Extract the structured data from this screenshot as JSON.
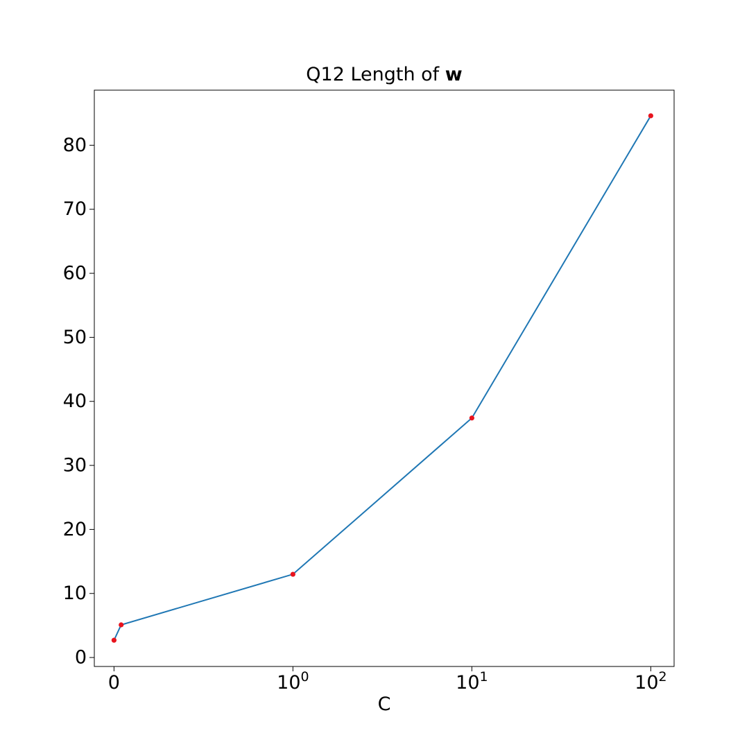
{
  "chart_data": {
    "type": "line",
    "title": "Q12 Length of w",
    "title_plain": "Q12 Length of ",
    "title_bold": "w",
    "xlabel": "C",
    "ylabel": "",
    "x_scale": "symlog",
    "x_ticks": [
      {
        "value": 0,
        "base": "0",
        "exp": ""
      },
      {
        "value": 1,
        "base": "10",
        "exp": "0"
      },
      {
        "value": 10,
        "base": "10",
        "exp": "1"
      },
      {
        "value": 100,
        "base": "10",
        "exp": "2"
      }
    ],
    "y_ticks": [
      0,
      10,
      20,
      30,
      40,
      50,
      60,
      70,
      80
    ],
    "xlim": [
      -0.11,
      135
    ],
    "ylim": [
      -1.4,
      88.6
    ],
    "grid": false,
    "series": [
      {
        "x": [
          0.0001,
          0.04,
          1,
          10,
          100
        ],
        "y": [
          2.7,
          5.1,
          13.0,
          37.4,
          84.6
        ],
        "line_color": "#1f77b4",
        "marker_color": "#e8141e"
      }
    ]
  }
}
